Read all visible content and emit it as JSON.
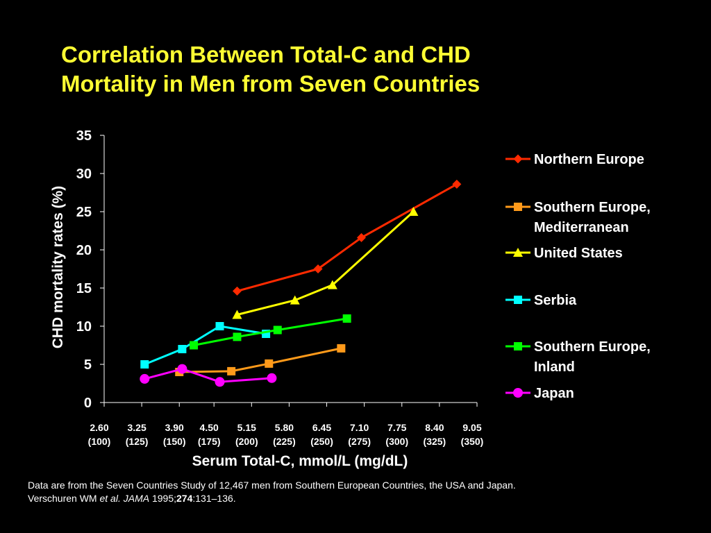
{
  "slide": {
    "title_line1": "Correlation Between Total-C and CHD",
    "title_line2": "Mortality in Men from Seven Countries",
    "footnote_line1": "Data are from the Seven Countries Study of 12,467 men from Southern European Countries, the USA and Japan.",
    "footnote_ref_author": "Verschuren WM ",
    "footnote_ref_etal": "et al. JAMA",
    "footnote_ref_year": " 1995;",
    "footnote_ref_volume": "274",
    "footnote_ref_pages": ":131–136."
  },
  "chart_data": {
    "type": "line",
    "title": "",
    "xlabel": "Serum Total-C, mmol/L (mg/dL)",
    "ylabel": "CHD mortality rates (%)",
    "xlim": [
      2.6,
      9.05
    ],
    "ylim": [
      0,
      35
    ],
    "x_ticks": [
      2.6,
      3.25,
      3.9,
      4.5,
      5.15,
      5.8,
      6.45,
      7.1,
      7.75,
      8.4,
      9.05
    ],
    "x_tick_labels": [
      [
        "2.60",
        "(100)"
      ],
      [
        "3.25",
        "(125)"
      ],
      [
        "3.90",
        "(150)"
      ],
      [
        "4.50",
        "(175)"
      ],
      [
        "5.15",
        "(200)"
      ],
      [
        "5.80",
        "(225)"
      ],
      [
        "6.45",
        "(250)"
      ],
      [
        "7.10",
        "(275)"
      ],
      [
        "7.75",
        "(300)"
      ],
      [
        "8.40",
        "(325)"
      ],
      [
        "9.05",
        "(350)"
      ]
    ],
    "y_ticks": [
      0,
      5,
      10,
      15,
      20,
      25,
      30,
      35
    ],
    "y_tick_labels": [
      "0",
      "5",
      "10",
      "15",
      "20",
      "25",
      "30",
      "35"
    ],
    "grid": false,
    "legend_position": "right",
    "series": [
      {
        "name": "Northern Europe",
        "color": "#ff2a00",
        "marker": "diamond",
        "x": [
          4.9,
          6.3,
          7.05,
          8.7
        ],
        "y": [
          14.6,
          17.5,
          21.6,
          28.6
        ]
      },
      {
        "name": "Southern Europe, Mediterranean",
        "color": "#ff9a1a",
        "marker": "square",
        "x": [
          3.9,
          4.8,
          5.45,
          6.7
        ],
        "y": [
          4.0,
          4.1,
          5.1,
          7.1
        ]
      },
      {
        "name": "United States",
        "color": "#ffff00",
        "marker": "triangle",
        "x": [
          4.9,
          5.9,
          6.55,
          7.95
        ],
        "y": [
          11.5,
          13.4,
          15.4,
          25.0
        ]
      },
      {
        "name": "Serbia",
        "color": "#00ffff",
        "marker": "square",
        "x": [
          3.3,
          3.95,
          4.6,
          5.4
        ],
        "y": [
          5.0,
          7.0,
          10.0,
          9.0
        ]
      },
      {
        "name": "Southern Europe, Inland",
        "color": "#00ff00",
        "marker": "square",
        "x": [
          4.15,
          4.9,
          5.6,
          6.8
        ],
        "y": [
          7.5,
          8.6,
          9.5,
          11.0
        ]
      },
      {
        "name": "Japan",
        "color": "#ff00ff",
        "marker": "circle",
        "x": [
          3.3,
          3.95,
          4.6,
          5.5
        ],
        "y": [
          3.1,
          4.4,
          2.7,
          3.2
        ]
      }
    ]
  }
}
